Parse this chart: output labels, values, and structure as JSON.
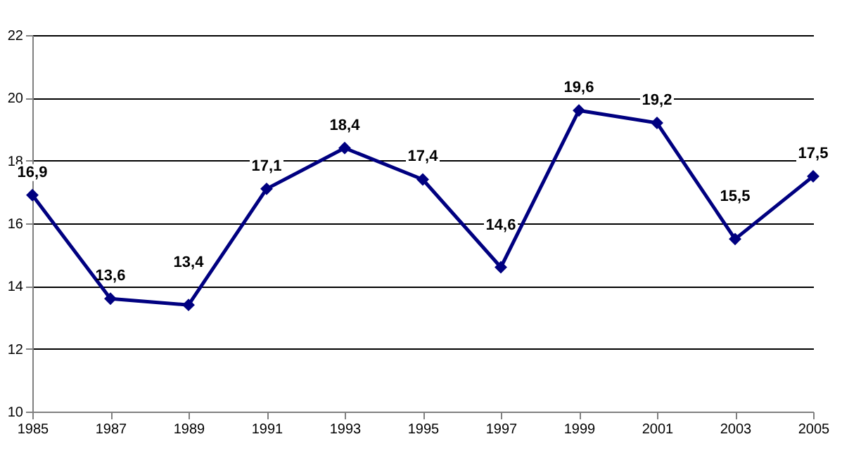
{
  "chart_data": {
    "type": "line",
    "x": [
      1985,
      1987,
      1989,
      1991,
      1993,
      1995,
      1997,
      1999,
      2001,
      2003,
      2005
    ],
    "series": [
      {
        "color": "#000080",
        "values": [
          16.9,
          13.6,
          13.4,
          17.1,
          18.4,
          17.4,
          14.6,
          19.6,
          19.2,
          15.5,
          17.5
        ],
        "value_labels": [
          "16,9",
          "13,6",
          "13,4",
          "17,1",
          "18,4",
          "17,4",
          "14,6",
          "19,6",
          "19,2",
          "15,5",
          "17,5"
        ]
      }
    ],
    "xlim": [
      1985,
      2005
    ],
    "xticks": [
      1985,
      1987,
      1989,
      1991,
      1993,
      1995,
      1997,
      1999,
      2001,
      2003,
      2005
    ],
    "ylim": [
      10,
      22
    ],
    "yticks": [
      10,
      12,
      14,
      16,
      18,
      20,
      22
    ],
    "grid": "y",
    "marker": "diamond",
    "line_style": "solid"
  }
}
